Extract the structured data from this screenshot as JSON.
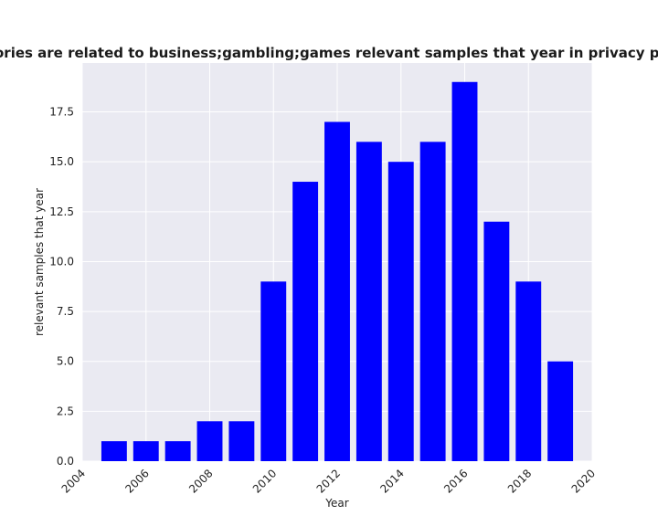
{
  "chart_data": {
    "type": "bar",
    "title": "Categories are related to business;gambling;games relevant samples that year in privacy policies",
    "xlabel": "Year",
    "ylabel": "relevant samples that year",
    "x": [
      2005,
      2006,
      2007,
      2008,
      2009,
      2010,
      2011,
      2012,
      2013,
      2014,
      2015,
      2016,
      2017,
      2018,
      2019
    ],
    "values": [
      1,
      1,
      1,
      2,
      2,
      9,
      14,
      17,
      16,
      15,
      16,
      19,
      12,
      9,
      5
    ],
    "xlim": [
      2004,
      2020
    ],
    "ylim": [
      0,
      19.95
    ],
    "xticks": [
      "2004",
      "2006",
      "2008",
      "2010",
      "2012",
      "2014",
      "2016",
      "2018",
      "2020"
    ],
    "yticks": [
      "0.0",
      "2.5",
      "5.0",
      "7.5",
      "10.0",
      "12.5",
      "15.0",
      "17.5"
    ],
    "grid": true,
    "colors": {
      "bar": "#0000ff",
      "plot_background": "#eaeaf2",
      "grid": "#ffffff"
    }
  }
}
